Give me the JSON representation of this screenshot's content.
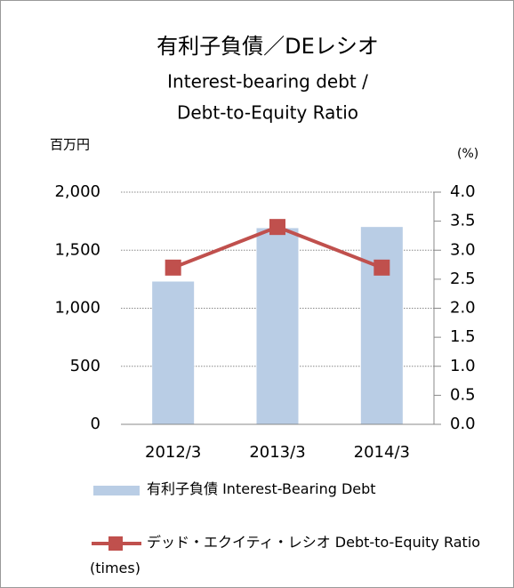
{
  "chart_data": {
    "type": "bar_line",
    "title": "有利子負債／DEレシオ",
    "subtitle": [
      "Interest-bearing debt /",
      "Debt-to-Equity Ratio"
    ],
    "ylabel": "百万円",
    "y2label": "(%)",
    "categories": [
      "2012/3",
      "2013/3",
      "2014/3"
    ],
    "series": [
      {
        "name": "有利子負債 Interest-Bearing Debt",
        "type": "bar",
        "color": "#b9cde5",
        "values": [
          1230,
          1690,
          1700
        ]
      },
      {
        "name": "デッド・エクイティ・レシオ Debt-to-Equity Ratio (times)",
        "type": "line",
        "axis": "y2",
        "color": "#c0504d",
        "values": [
          2.7,
          3.4,
          2.7
        ]
      }
    ],
    "ylim": [
      0,
      2000
    ],
    "yticks": [
      0,
      500,
      {
        "value": 1000,
        "label": "1,000"
      },
      {
        "value": 1500,
        "label": "1,500"
      },
      {
        "value": 2000,
        "label": "2,000"
      }
    ],
    "y2lim": [
      0,
      4
    ],
    "y2ticks": [
      {
        "value": 0,
        "label": "0.0"
      },
      0.5,
      {
        "value": 1,
        "label": "1.0"
      },
      1.5,
      {
        "value": 2,
        "label": "2.0"
      },
      2.5,
      {
        "value": 3,
        "label": "3.0"
      },
      3.5,
      {
        "value": 4,
        "label": "4.0"
      }
    ],
    "grid": true
  }
}
